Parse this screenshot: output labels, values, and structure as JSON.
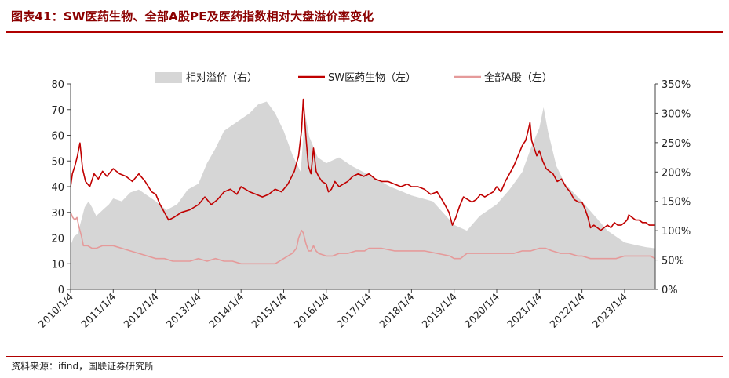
{
  "header": {
    "title": "图表41：SW医药生物、全部A股PE及医药指数相对大盘溢价率变化"
  },
  "footer": {
    "source": "资料来源：ifind，国联证券研究所"
  },
  "colors": {
    "premium_fill": "#d6d6d6",
    "sw_line": "#c00000",
    "all_a_line": "#e59a9a",
    "rule": "#b00000"
  },
  "chart_data": {
    "type": "area",
    "title": "",
    "x_ticks": [
      "2010/1/4",
      "2011/1/4",
      "2012/1/4",
      "2013/1/4",
      "2014/1/4",
      "2015/1/4",
      "2016/1/4",
      "2017/1/4",
      "2018/1/4",
      "2019/1/4",
      "2020/1/4",
      "2021/1/4",
      "2022/1/4",
      "2023/1/4"
    ],
    "x_range": [
      2010.0,
      2023.72
    ],
    "y_left": {
      "range": [
        0,
        80
      ],
      "ticks": [
        0,
        10,
        20,
        30,
        40,
        50,
        60,
        70,
        80
      ]
    },
    "y_right": {
      "range": [
        0,
        350
      ],
      "ticks": [
        "0%",
        "50%",
        "100%",
        "150%",
        "200%",
        "250%",
        "300%",
        "350%"
      ],
      "tick_values": [
        0,
        50,
        100,
        150,
        200,
        250,
        300,
        350
      ]
    },
    "legend_position": "top",
    "series": [
      {
        "name": "相对溢价（右）",
        "kind": "area",
        "axis": "right",
        "points": [
          [
            2010.0,
            75
          ],
          [
            2010.08,
            90
          ],
          [
            2010.17,
            95
          ],
          [
            2010.25,
            118
          ],
          [
            2010.33,
            140
          ],
          [
            2010.42,
            150
          ],
          [
            2010.5,
            140
          ],
          [
            2010.6,
            125
          ],
          [
            2010.75,
            135
          ],
          [
            2010.9,
            145
          ],
          [
            2011.0,
            155
          ],
          [
            2011.2,
            150
          ],
          [
            2011.4,
            165
          ],
          [
            2011.6,
            170
          ],
          [
            2011.8,
            160
          ],
          [
            2012.0,
            150
          ],
          [
            2012.25,
            135
          ],
          [
            2012.5,
            145
          ],
          [
            2012.75,
            170
          ],
          [
            2013.0,
            180
          ],
          [
            2013.2,
            215
          ],
          [
            2013.4,
            240
          ],
          [
            2013.6,
            270
          ],
          [
            2013.8,
            280
          ],
          [
            2014.0,
            290
          ],
          [
            2014.2,
            300
          ],
          [
            2014.4,
            315
          ],
          [
            2014.6,
            320
          ],
          [
            2014.8,
            300
          ],
          [
            2015.0,
            270
          ],
          [
            2015.2,
            230
          ],
          [
            2015.4,
            200
          ],
          [
            2015.5,
            300
          ],
          [
            2015.6,
            260
          ],
          [
            2015.8,
            225
          ],
          [
            2016.0,
            215
          ],
          [
            2016.3,
            225
          ],
          [
            2016.6,
            210
          ],
          [
            2017.0,
            195
          ],
          [
            2017.5,
            175
          ],
          [
            2018.0,
            160
          ],
          [
            2018.5,
            150
          ],
          [
            2019.0,
            110
          ],
          [
            2019.3,
            100
          ],
          [
            2019.6,
            125
          ],
          [
            2020.0,
            145
          ],
          [
            2020.3,
            170
          ],
          [
            2020.6,
            200
          ],
          [
            2020.8,
            240
          ],
          [
            2021.0,
            275
          ],
          [
            2021.1,
            310
          ],
          [
            2021.2,
            270
          ],
          [
            2021.4,
            210
          ],
          [
            2021.6,
            180
          ],
          [
            2022.0,
            150
          ],
          [
            2022.3,
            125
          ],
          [
            2022.6,
            100
          ],
          [
            2023.0,
            80
          ],
          [
            2023.3,
            75
          ],
          [
            2023.5,
            72
          ],
          [
            2023.72,
            70
          ]
        ]
      },
      {
        "name": "SW医药生物（左）",
        "kind": "line",
        "axis": "left",
        "points": [
          [
            2010.0,
            40
          ],
          [
            2010.04,
            45
          ],
          [
            2010.1,
            48
          ],
          [
            2010.16,
            52
          ],
          [
            2010.22,
            57
          ],
          [
            2010.28,
            47
          ],
          [
            2010.35,
            42
          ],
          [
            2010.45,
            40
          ],
          [
            2010.55,
            45
          ],
          [
            2010.65,
            43
          ],
          [
            2010.75,
            46
          ],
          [
            2010.85,
            44
          ],
          [
            2011.0,
            47
          ],
          [
            2011.15,
            45
          ],
          [
            2011.3,
            44
          ],
          [
            2011.45,
            42
          ],
          [
            2011.6,
            45
          ],
          [
            2011.75,
            42
          ],
          [
            2011.9,
            38
          ],
          [
            2012.0,
            37
          ],
          [
            2012.1,
            33
          ],
          [
            2012.2,
            30
          ],
          [
            2012.3,
            27
          ],
          [
            2012.42,
            28
          ],
          [
            2012.6,
            30
          ],
          [
            2012.8,
            31
          ],
          [
            2013.0,
            33
          ],
          [
            2013.15,
            36
          ],
          [
            2013.3,
            33
          ],
          [
            2013.45,
            35
          ],
          [
            2013.6,
            38
          ],
          [
            2013.75,
            39
          ],
          [
            2013.9,
            37
          ],
          [
            2014.0,
            40
          ],
          [
            2014.2,
            38
          ],
          [
            2014.35,
            37
          ],
          [
            2014.5,
            36
          ],
          [
            2014.65,
            37
          ],
          [
            2014.8,
            39
          ],
          [
            2014.95,
            38
          ],
          [
            2015.1,
            41
          ],
          [
            2015.25,
            46
          ],
          [
            2015.35,
            52
          ],
          [
            2015.42,
            62
          ],
          [
            2015.46,
            74
          ],
          [
            2015.52,
            60
          ],
          [
            2015.58,
            48
          ],
          [
            2015.64,
            45
          ],
          [
            2015.7,
            55
          ],
          [
            2015.76,
            46
          ],
          [
            2015.82,
            44
          ],
          [
            2015.9,
            42
          ],
          [
            2016.0,
            41
          ],
          [
            2016.05,
            38
          ],
          [
            2016.12,
            39
          ],
          [
            2016.2,
            42
          ],
          [
            2016.3,
            40
          ],
          [
            2016.4,
            41
          ],
          [
            2016.5,
            42
          ],
          [
            2016.62,
            44
          ],
          [
            2016.75,
            45
          ],
          [
            2016.88,
            44
          ],
          [
            2017.0,
            45
          ],
          [
            2017.15,
            43
          ],
          [
            2017.3,
            42
          ],
          [
            2017.45,
            42
          ],
          [
            2017.6,
            41
          ],
          [
            2017.75,
            40
          ],
          [
            2017.9,
            41
          ],
          [
            2018.0,
            40
          ],
          [
            2018.15,
            40
          ],
          [
            2018.3,
            39
          ],
          [
            2018.45,
            37
          ],
          [
            2018.6,
            38
          ],
          [
            2018.75,
            34
          ],
          [
            2018.88,
            30
          ],
          [
            2018.96,
            25
          ],
          [
            2019.04,
            28
          ],
          [
            2019.12,
            32
          ],
          [
            2019.22,
            36
          ],
          [
            2019.32,
            35
          ],
          [
            2019.42,
            34
          ],
          [
            2019.52,
            35
          ],
          [
            2019.62,
            37
          ],
          [
            2019.72,
            36
          ],
          [
            2019.82,
            37
          ],
          [
            2019.92,
            38
          ],
          [
            2020.0,
            40
          ],
          [
            2020.1,
            38
          ],
          [
            2020.2,
            42
          ],
          [
            2020.3,
            45
          ],
          [
            2020.4,
            48
          ],
          [
            2020.5,
            52
          ],
          [
            2020.6,
            56
          ],
          [
            2020.68,
            58
          ],
          [
            2020.74,
            62
          ],
          [
            2020.78,
            65
          ],
          [
            2020.82,
            58
          ],
          [
            2020.88,
            55
          ],
          [
            2020.94,
            52
          ],
          [
            2021.0,
            54
          ],
          [
            2021.08,
            50
          ],
          [
            2021.16,
            47
          ],
          [
            2021.24,
            46
          ],
          [
            2021.32,
            45
          ],
          [
            2021.42,
            42
          ],
          [
            2021.52,
            43
          ],
          [
            2021.62,
            40
          ],
          [
            2021.72,
            38
          ],
          [
            2021.82,
            35
          ],
          [
            2021.92,
            34
          ],
          [
            2022.0,
            34
          ],
          [
            2022.08,
            31
          ],
          [
            2022.14,
            28
          ],
          [
            2022.2,
            24
          ],
          [
            2022.28,
            25
          ],
          [
            2022.36,
            24
          ],
          [
            2022.44,
            23
          ],
          [
            2022.52,
            24
          ],
          [
            2022.6,
            25
          ],
          [
            2022.68,
            24
          ],
          [
            2022.76,
            26
          ],
          [
            2022.84,
            25
          ],
          [
            2022.92,
            25
          ],
          [
            2023.0,
            26
          ],
          [
            2023.06,
            27
          ],
          [
            2023.1,
            29
          ],
          [
            2023.18,
            28
          ],
          [
            2023.26,
            27
          ],
          [
            2023.34,
            27
          ],
          [
            2023.42,
            26
          ],
          [
            2023.5,
            26
          ],
          [
            2023.58,
            25
          ],
          [
            2023.66,
            25
          ],
          [
            2023.72,
            25
          ]
        ]
      },
      {
        "name": "全部A股（左）",
        "kind": "line",
        "axis": "left",
        "points": [
          [
            2010.0,
            30
          ],
          [
            2010.05,
            28
          ],
          [
            2010.1,
            27
          ],
          [
            2010.15,
            28
          ],
          [
            2010.2,
            24
          ],
          [
            2010.25,
            21
          ],
          [
            2010.3,
            17
          ],
          [
            2010.4,
            17
          ],
          [
            2010.5,
            16
          ],
          [
            2010.6,
            16
          ],
          [
            2010.75,
            17
          ],
          [
            2010.9,
            17
          ],
          [
            2011.0,
            17
          ],
          [
            2011.2,
            16
          ],
          [
            2011.4,
            15
          ],
          [
            2011.6,
            14
          ],
          [
            2011.8,
            13
          ],
          [
            2012.0,
            12
          ],
          [
            2012.2,
            12
          ],
          [
            2012.4,
            11
          ],
          [
            2012.6,
            11
          ],
          [
            2012.8,
            11
          ],
          [
            2013.0,
            12
          ],
          [
            2013.2,
            11
          ],
          [
            2013.4,
            12
          ],
          [
            2013.6,
            11
          ],
          [
            2013.8,
            11
          ],
          [
            2014.0,
            10
          ],
          [
            2014.2,
            10
          ],
          [
            2014.4,
            10
          ],
          [
            2014.6,
            10
          ],
          [
            2014.8,
            10
          ],
          [
            2015.0,
            12
          ],
          [
            2015.2,
            14
          ],
          [
            2015.3,
            16
          ],
          [
            2015.35,
            20
          ],
          [
            2015.42,
            23
          ],
          [
            2015.46,
            22
          ],
          [
            2015.52,
            18
          ],
          [
            2015.58,
            15
          ],
          [
            2015.64,
            15
          ],
          [
            2015.7,
            17
          ],
          [
            2015.76,
            15
          ],
          [
            2015.82,
            14
          ],
          [
            2016.0,
            13
          ],
          [
            2016.15,
            13
          ],
          [
            2016.3,
            14
          ],
          [
            2016.5,
            14
          ],
          [
            2016.7,
            15
          ],
          [
            2016.9,
            15
          ],
          [
            2017.0,
            16
          ],
          [
            2017.3,
            16
          ],
          [
            2017.6,
            15
          ],
          [
            2017.9,
            15
          ],
          [
            2018.0,
            15
          ],
          [
            2018.3,
            15
          ],
          [
            2018.6,
            14
          ],
          [
            2018.9,
            13
          ],
          [
            2019.0,
            12
          ],
          [
            2019.15,
            12
          ],
          [
            2019.3,
            14
          ],
          [
            2019.5,
            14
          ],
          [
            2019.7,
            14
          ],
          [
            2019.9,
            14
          ],
          [
            2020.0,
            14
          ],
          [
            2020.2,
            14
          ],
          [
            2020.4,
            14
          ],
          [
            2020.6,
            15
          ],
          [
            2020.8,
            15
          ],
          [
            2021.0,
            16
          ],
          [
            2021.15,
            16
          ],
          [
            2021.3,
            15
          ],
          [
            2021.5,
            14
          ],
          [
            2021.7,
            14
          ],
          [
            2021.9,
            13
          ],
          [
            2022.0,
            13
          ],
          [
            2022.2,
            12
          ],
          [
            2022.4,
            12
          ],
          [
            2022.6,
            12
          ],
          [
            2022.8,
            12
          ],
          [
            2023.0,
            13
          ],
          [
            2023.2,
            13
          ],
          [
            2023.4,
            13
          ],
          [
            2023.6,
            13
          ],
          [
            2023.72,
            12
          ]
        ]
      }
    ]
  }
}
